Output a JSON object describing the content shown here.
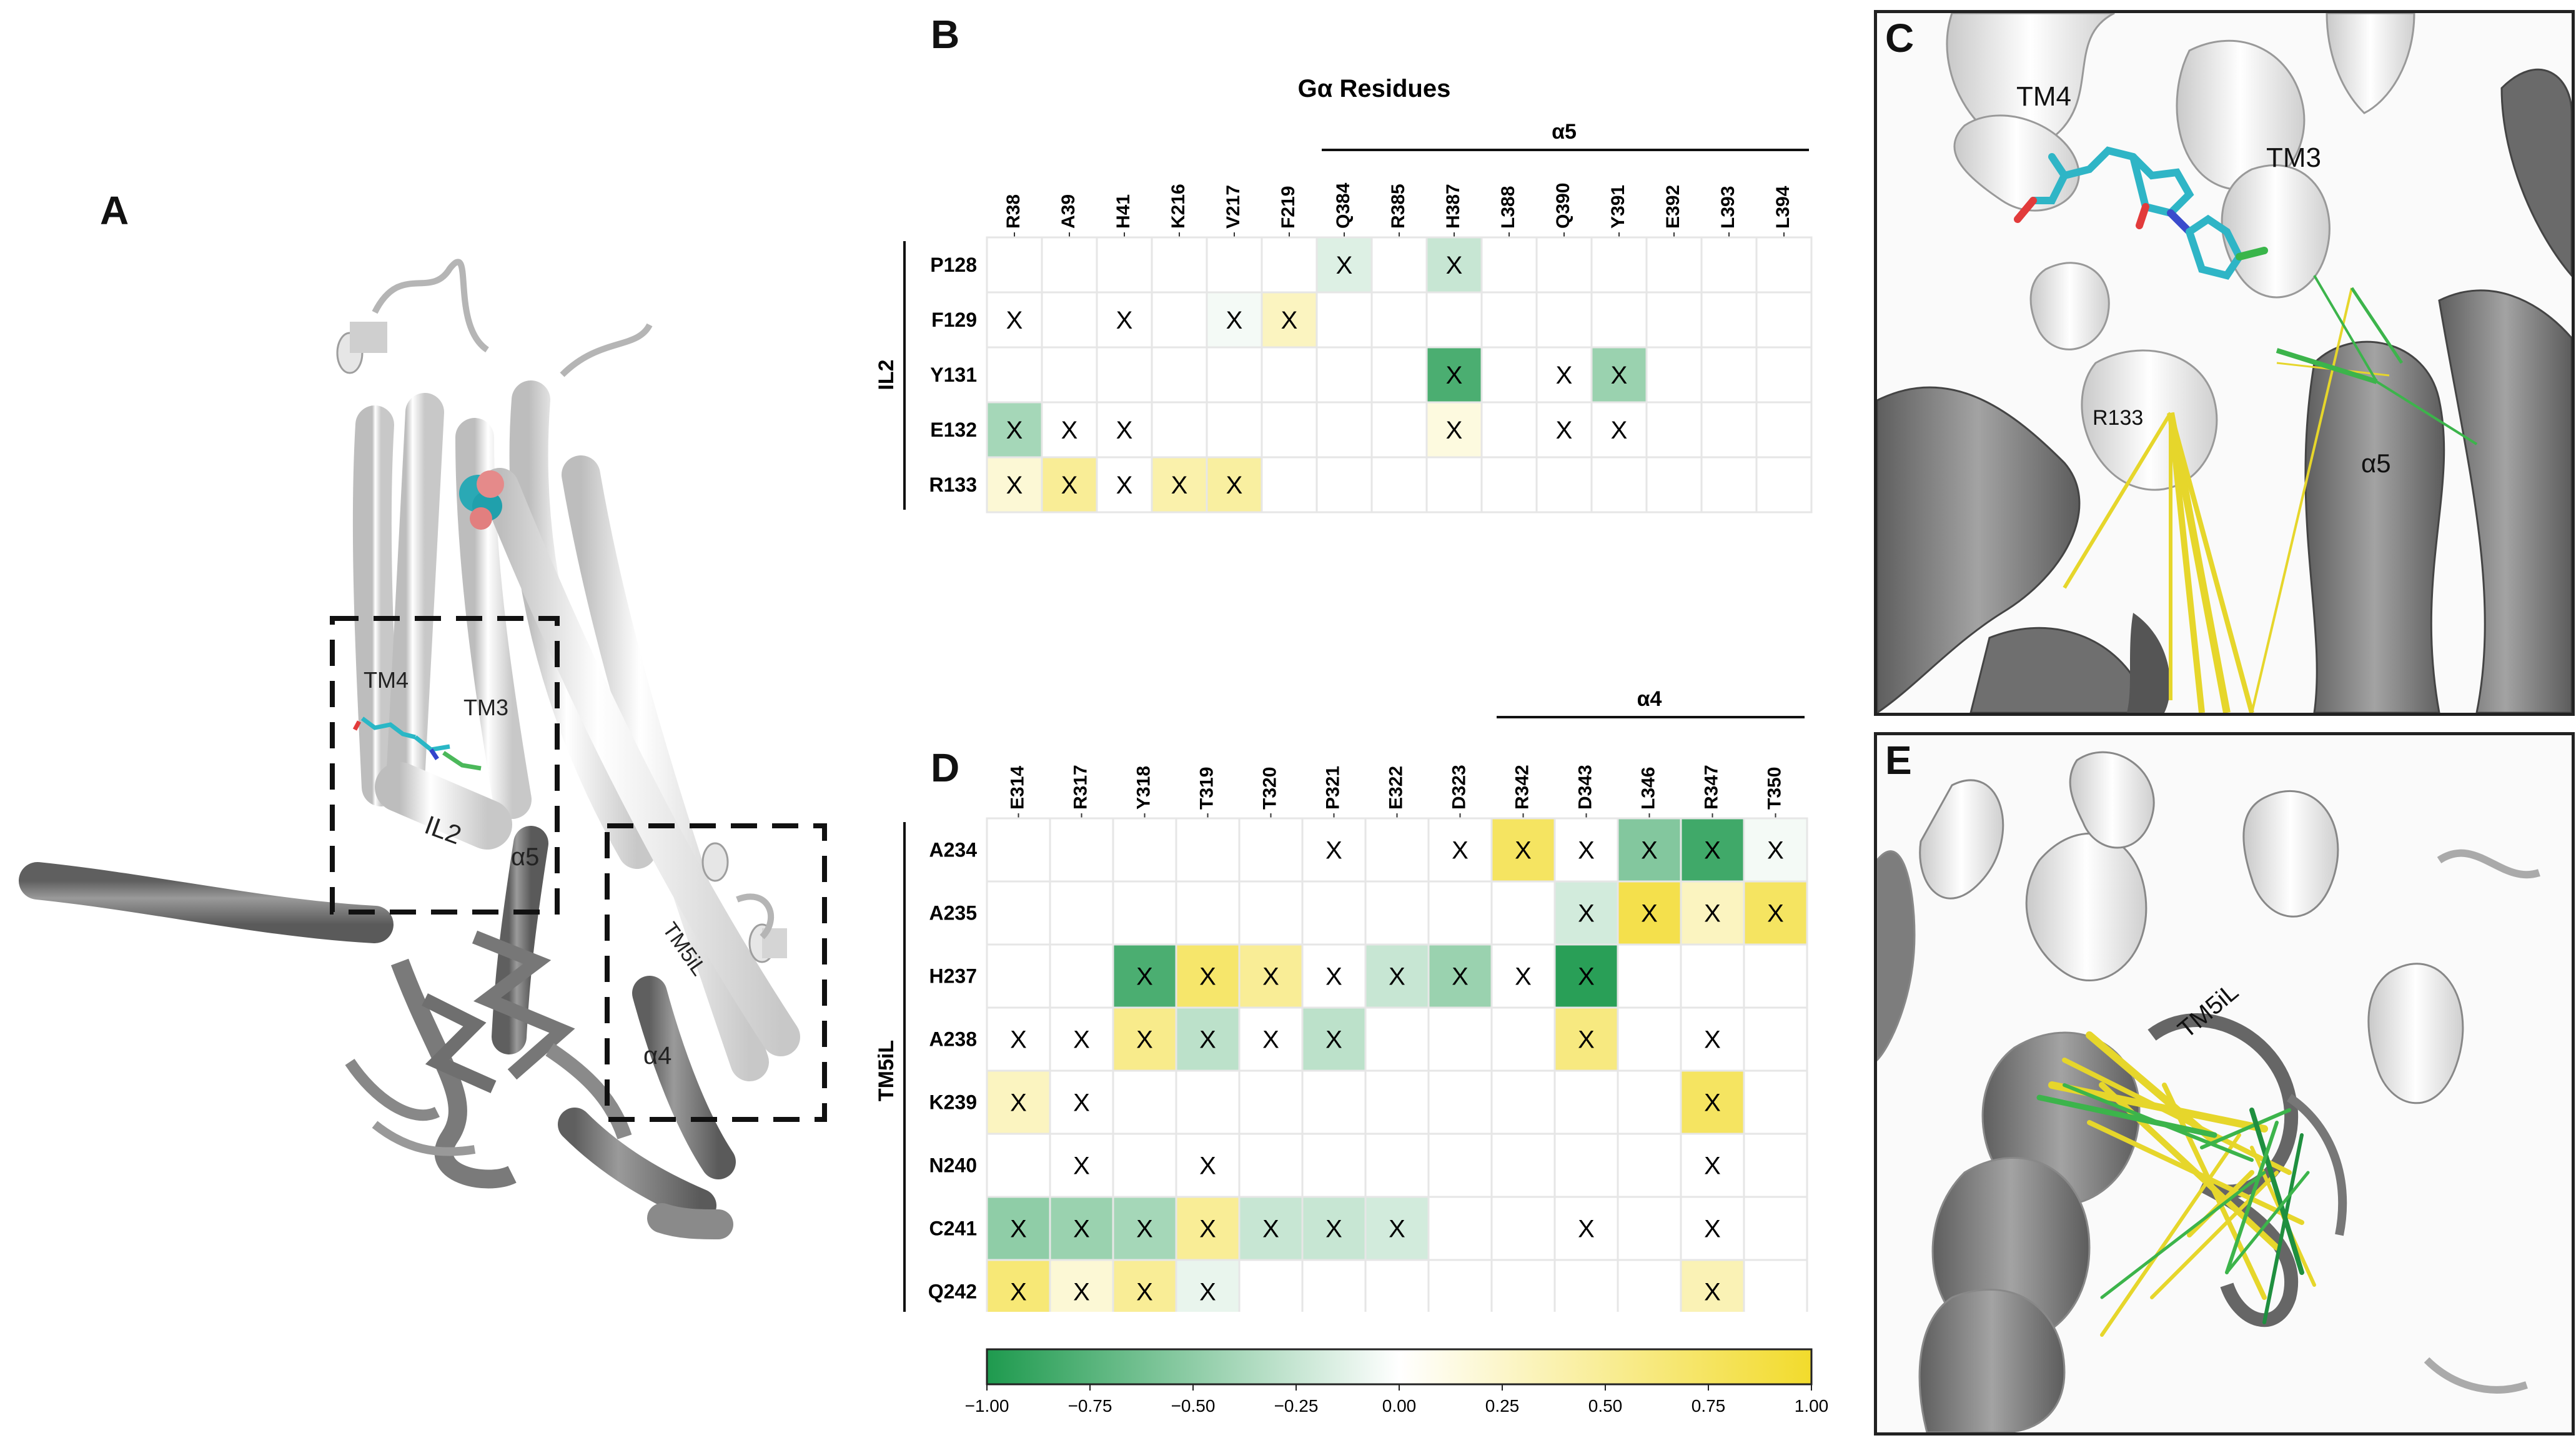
{
  "panels": {
    "A": {
      "letter": "A",
      "labels": [
        "TM4",
        "TM3",
        "IL2",
        "α5",
        "TM5iL",
        "α4"
      ]
    },
    "B": {
      "letter": "B",
      "title": "Gα Residues",
      "group_label": "α5",
      "row_group_label": "IL2",
      "columns": [
        "R38",
        "A39",
        "H41",
        "K216",
        "V217",
        "F219",
        "Q384",
        "R385",
        "H387",
        "L388",
        "Q390",
        "Y391",
        "E392",
        "L393",
        "L394"
      ],
      "rows": [
        "P128",
        "F129",
        "Y131",
        "E132",
        "R133"
      ],
      "marker": "X",
      "cells": [
        [
          null,
          null,
          null,
          null,
          null,
          null,
          -0.15,
          null,
          -0.25,
          null,
          null,
          null,
          null,
          null,
          null
        ],
        [
          0,
          null,
          0,
          null,
          -0.05,
          0.3,
          null,
          null,
          null,
          null,
          null,
          null,
          null,
          null,
          null
        ],
        [
          null,
          null,
          null,
          null,
          null,
          null,
          null,
          null,
          -0.8,
          null,
          0,
          -0.45,
          null,
          null,
          null
        ],
        [
          -0.4,
          0,
          0,
          null,
          null,
          null,
          null,
          null,
          0.15,
          null,
          0,
          0,
          null,
          null,
          null
        ],
        [
          0.2,
          0.5,
          0,
          0.4,
          0.45,
          null,
          null,
          null,
          null,
          null,
          null,
          null,
          null,
          null,
          null
        ]
      ]
    },
    "C": {
      "letter": "C",
      "labels": [
        "TM4",
        "TM3",
        "R133",
        "α5"
      ]
    },
    "D": {
      "letter": "D",
      "group_label": "α4",
      "row_group_label": "TM5iL",
      "columns": [
        "E314",
        "R317",
        "Y318",
        "T319",
        "T320",
        "P321",
        "E322",
        "D323",
        "R342",
        "D343",
        "L346",
        "R347",
        "T350"
      ],
      "rows": [
        "A234",
        "A235",
        "H237",
        "A238",
        "K239",
        "N240",
        "C241",
        "Q242"
      ],
      "marker": "X",
      "cells": [
        [
          null,
          null,
          null,
          null,
          null,
          0,
          null,
          0,
          0.75,
          0,
          -0.55,
          -0.85,
          -0.05
        ],
        [
          null,
          null,
          null,
          null,
          null,
          null,
          null,
          null,
          null,
          -0.2,
          0.85,
          0.3,
          0.75
        ],
        [
          null,
          null,
          -0.8,
          0.7,
          0.5,
          0,
          -0.25,
          -0.45,
          0,
          -0.95,
          null,
          null,
          null
        ],
        [
          0,
          0,
          0.55,
          -0.3,
          0,
          -0.3,
          null,
          null,
          null,
          0.6,
          null,
          0,
          null
        ],
        [
          0.3,
          0,
          null,
          null,
          null,
          null,
          null,
          null,
          null,
          null,
          null,
          0.75,
          null
        ],
        [
          null,
          0,
          null,
          0,
          null,
          null,
          null,
          null,
          null,
          null,
          null,
          0,
          null
        ],
        [
          -0.5,
          -0.45,
          -0.4,
          0.5,
          -0.25,
          -0.25,
          -0.2,
          null,
          null,
          0,
          null,
          0,
          null
        ],
        [
          0.65,
          0.2,
          0.5,
          -0.1,
          null,
          null,
          null,
          null,
          null,
          null,
          null,
          0.35,
          null
        ]
      ]
    },
    "E": {
      "letter": "E",
      "labels": [
        "TM5iL"
      ]
    }
  },
  "colorbar": {
    "ticks": [
      "−1.00",
      "−0.75",
      "−0.50",
      "−0.25",
      "0.00",
      "0.25",
      "0.50",
      "0.75",
      "1.00"
    ],
    "low_color": "#1e9a4e",
    "mid_color": "#ffffff",
    "high_color": "#f2db2c"
  }
}
